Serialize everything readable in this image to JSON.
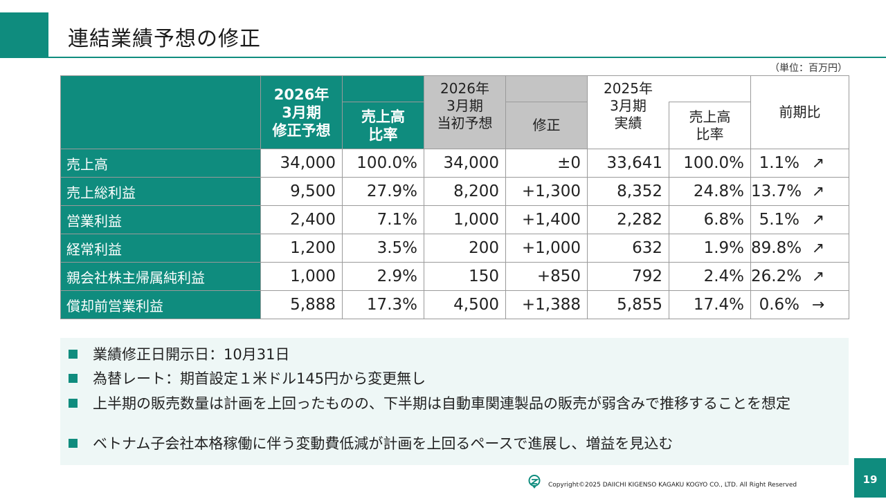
{
  "page": {
    "title": "連結業績予想の修正",
    "unit": "（単位：百万円）",
    "copyright": "Copyright©2025 DAIICHI KIGENSO KAGAKU KOGYO CO., LTD. All Right Reserved",
    "page_number": "19",
    "accent_color": "#0f8c7e"
  },
  "table": {
    "headers": {
      "revised": "2026年\n3月期\n修正予想",
      "revised_ratio": "売上高\n比率",
      "initial": "2026年\n3月期\n当初予想",
      "revision": "修正",
      "actual": "2025年\n3月期\n実績",
      "actual_ratio": "売上高\n比率",
      "yoy": "前期比"
    },
    "rows": [
      {
        "label": "売上高",
        "revised": "34,000",
        "revised_ratio": "100.0%",
        "initial": "34,000",
        "revision": "±0",
        "actual": "33,641",
        "actual_ratio": "100.0%",
        "yoy": "1.1%",
        "arrow": "↗"
      },
      {
        "label": "売上総利益",
        "revised": "9,500",
        "revised_ratio": "27.9%",
        "initial": "8,200",
        "revision": "+1,300",
        "actual": "8,352",
        "actual_ratio": "24.8%",
        "yoy": "13.7%",
        "arrow": "↗"
      },
      {
        "label": "営業利益",
        "revised": "2,400",
        "revised_ratio": "7.1%",
        "initial": "1,000",
        "revision": "+1,400",
        "actual": "2,282",
        "actual_ratio": "6.8%",
        "yoy": "5.1%",
        "arrow": "↗"
      },
      {
        "label": "経常利益",
        "revised": "1,200",
        "revised_ratio": "3.5%",
        "initial": "200",
        "revision": "+1,000",
        "actual": "632",
        "actual_ratio": "1.9%",
        "yoy": "89.8%",
        "arrow": "↗"
      },
      {
        "label": "親会社株主帰属純利益",
        "revised": "1,000",
        "revised_ratio": "2.9%",
        "initial": "150",
        "revision": "+850",
        "actual": "792",
        "actual_ratio": "2.4%",
        "yoy": "26.2%",
        "arrow": "↗"
      },
      {
        "label": "償却前営業利益",
        "revised": "5,888",
        "revised_ratio": "17.3%",
        "initial": "4,500",
        "revision": "+1,388",
        "actual": "5,855",
        "actual_ratio": "17.4%",
        "yoy": "0.6%",
        "arrow": "→"
      }
    ]
  },
  "notes": [
    "業績修正日開示日：10月31日",
    "為替レート：期首設定１米ドル145円から変更無し",
    "上半期の販売数量は計画を上回ったものの、下半期は自動車関連製品の販売が弱含みで推移することを想定",
    "ベトナム子会社本格稼働に伴う変動費低減が計画を上回るペースで進展し、増益を見込む"
  ]
}
